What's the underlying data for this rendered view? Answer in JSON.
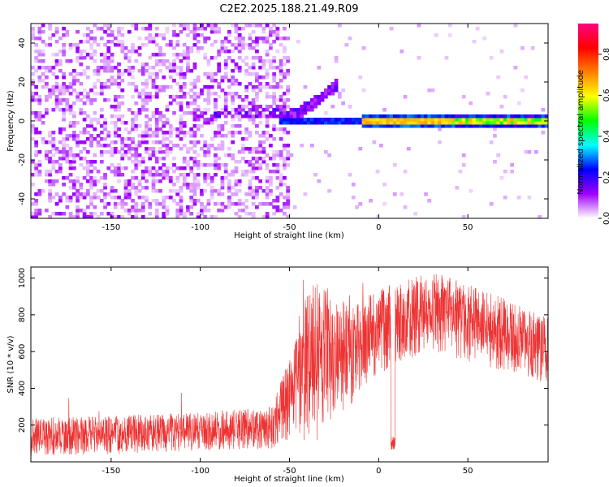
{
  "title": "C2E2.2025.188.21.49.R09",
  "chart_data": [
    {
      "type": "heatmap",
      "xlabel": "Height of straight line (km)",
      "ylabel": "Frequency (Hz)",
      "xlim": [
        -195,
        95
      ],
      "ylim": [
        -50,
        50
      ],
      "xticks": [
        -150,
        -100,
        -50,
        0,
        50
      ],
      "yticks": [
        -40,
        -20,
        0,
        20,
        40
      ],
      "colorbar": {
        "label": "Normalized spectral amplitude",
        "range": [
          0,
          0.95
        ],
        "ticks": [
          0.0,
          0.2,
          0.4,
          0.6,
          0.8
        ],
        "tick_labels": [
          "0.0",
          "0.2",
          "0.4",
          "0.6",
          "0.8"
        ],
        "colormap": [
          "#ffffff",
          "#a000ff",
          "#0000ff",
          "#00ffff",
          "#00ff00",
          "#ffff00",
          "#ff8000",
          "#ff0000",
          "#ff0080"
        ]
      },
      "features": {
        "noise_region_x": [
          -195,
          -50
        ],
        "signal_tone_hz": 0,
        "signal_start_x": -50,
        "rising_branch": [
          [
            -55,
            2
          ],
          [
            -45,
            4
          ],
          [
            -35,
            10
          ],
          [
            -22,
            20
          ]
        ]
      }
    },
    {
      "type": "line",
      "xlabel": "Height of straight line (km)",
      "ylabel": "SNR (10 * v/v)",
      "xlim": [
        -195,
        95
      ],
      "ylim": [
        0,
        1060
      ],
      "xticks": [
        -150,
        -100,
        -50,
        0,
        50
      ],
      "yticks": [
        200,
        400,
        600,
        800,
        1000
      ],
      "series": [
        {
          "color": "#ee3333",
          "envelope_x": [
            -195,
            -150,
            -100,
            -60,
            -45,
            -40,
            -35,
            -25,
            -15,
            -5,
            5,
            15,
            30,
            45,
            60,
            75,
            90
          ],
          "envelope_low": [
            30,
            40,
            60,
            70,
            150,
            100,
            100,
            250,
            300,
            450,
            500,
            550,
            600,
            560,
            520,
            480,
            430
          ],
          "envelope_high": [
            240,
            250,
            270,
            300,
            700,
            980,
            1000,
            900,
            850,
            920,
            950,
            1000,
            1030,
            990,
            930,
            870,
            800
          ]
        }
      ]
    }
  ]
}
